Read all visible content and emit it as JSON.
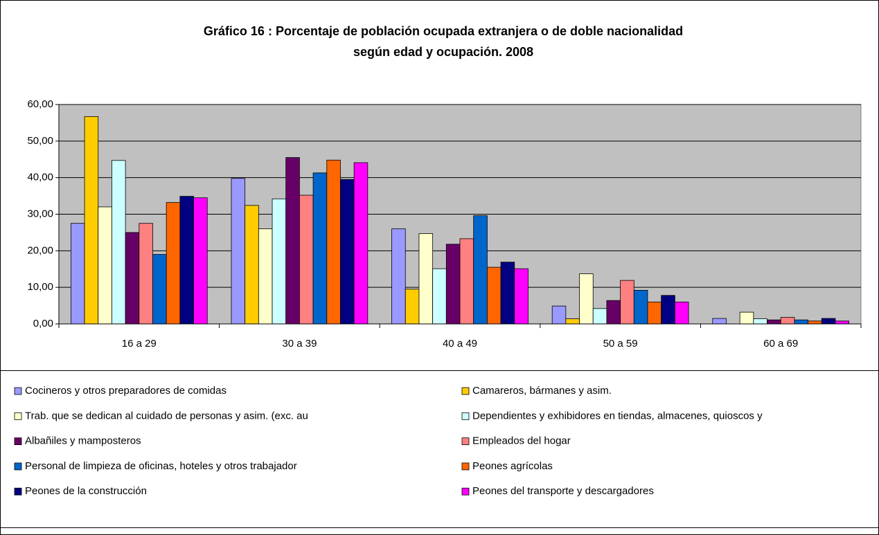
{
  "chart_data": {
    "type": "bar",
    "title": "Gráfico 16  : Porcentaje de población ocupada extranjera o de doble nacionalidad",
    "subtitle": "según edad y ocupación. 2008",
    "categories": [
      "16 a 29",
      "30 a 39",
      "40 a 49",
      "50 a 59",
      "60 a 69"
    ],
    "series": [
      {
        "name": "Cocineros y otros preparadores de comidas",
        "color": "#9999ff",
        "values": [
          27.5,
          39.8,
          26.0,
          4.9,
          1.5
        ]
      },
      {
        "name": "Camareros, bármanes y asim.",
        "color": "#ffcc00",
        "values": [
          56.7,
          32.4,
          9.5,
          1.4,
          0
        ]
      },
      {
        "name": "Trab. que se dedican al cuidado de personas y asim. (exc. au",
        "color": "#ffffcc",
        "values": [
          32.0,
          26.0,
          24.7,
          13.7,
          3.2
        ]
      },
      {
        "name": "Dependientes y exhibidores en tiendas, almacenes, quioscos y",
        "color": "#ccffff",
        "values": [
          44.7,
          34.2,
          15.1,
          4.2,
          1.4
        ]
      },
      {
        "name": "Albañiles y mamposteros",
        "color": "#660066",
        "values": [
          25.0,
          45.5,
          21.8,
          6.4,
          1.1
        ]
      },
      {
        "name": "Empleados del hogar",
        "color": "#ff8080",
        "values": [
          27.5,
          35.2,
          23.3,
          11.9,
          1.8
        ]
      },
      {
        "name": "Personal de limpieza de oficinas, hoteles y otros trabajador",
        "color": "#0066cc",
        "values": [
          19.0,
          41.3,
          29.6,
          9.2,
          1.1
        ]
      },
      {
        "name": "Peones agrícolas",
        "color": "#ff6600",
        "values": [
          33.2,
          44.8,
          15.5,
          6.0,
          0.8
        ]
      },
      {
        "name": "Peones de la construcción",
        "color": "#000080",
        "values": [
          34.9,
          39.5,
          16.9,
          7.8,
          1.5
        ]
      },
      {
        "name": "Peones del transporte y descargadores",
        "color": "#ff00ff",
        "values": [
          34.5,
          44.1,
          15.1,
          6.0,
          0.8
        ]
      }
    ],
    "ylim": [
      0,
      60
    ],
    "yticks": [
      {
        "value": 0,
        "label": "0,00"
      },
      {
        "value": 10,
        "label": "10,00"
      },
      {
        "value": 20,
        "label": "20,00"
      },
      {
        "value": 30,
        "label": "30,00"
      },
      {
        "value": 40,
        "label": "40,00"
      },
      {
        "value": 50,
        "label": "50,00"
      },
      {
        "value": 60,
        "label": "60,00"
      }
    ],
    "grid": true
  }
}
